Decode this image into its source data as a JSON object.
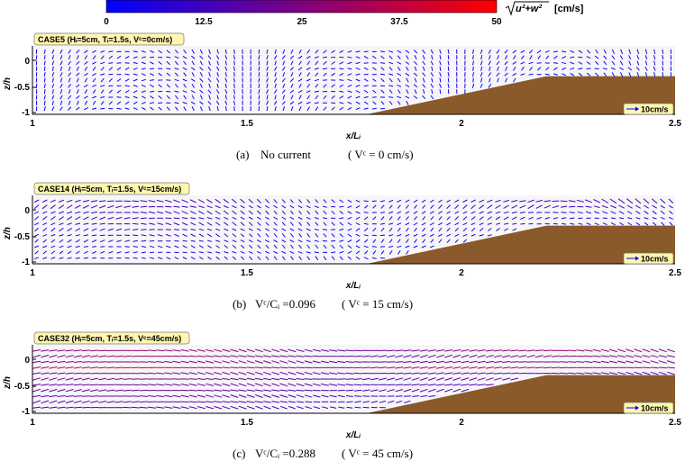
{
  "colorbar": {
    "ticks": [
      "0",
      "12.5",
      "25",
      "37.5",
      "50"
    ],
    "range": [
      0,
      50
    ],
    "label": "√u²+w² [cm/s]",
    "label_radicand": "u²+w²",
    "label_unit": "[cm/s]",
    "colors": [
      "#0000ff",
      "#ff0000"
    ]
  },
  "colors": {
    "bed": "#8b5a2b",
    "arrow_low": "#0000ff",
    "arrow_high": "#ff0000",
    "label_box": "#fff7b0"
  },
  "chart_data": [
    {
      "type": "quiver",
      "case_label": "CASE5 (Hᵢ=5cm, Tᵢ=1.5s, Vᶜ=0cm/s)",
      "case_parts": {
        "name": "CASE5",
        "H": "5cm",
        "T": "1.5s",
        "V": "0cm/s"
      },
      "xlabel": "x/Lᵢ",
      "ylabel": "z/h",
      "xlim": [
        1,
        2.5
      ],
      "ylim": [
        -1,
        0.2
      ],
      "xticks": [
        "1",
        "1.5",
        "2",
        "2.5"
      ],
      "yticks": [
        "0",
        "-0.5",
        "-1"
      ],
      "scale_label": "10cm/s",
      "current_cm_s": 0,
      "max_speed_cm_s": 18,
      "caption": {
        "letter": "(a)",
        "text": "No  current",
        "paren": "( Vᶜ = 0 cm/s)"
      }
    },
    {
      "type": "quiver",
      "case_label": "CASE14 (Hᵢ=5cm, Tᵢ=1.5s, Vᶜ=15cm/s)",
      "case_parts": {
        "name": "CASE14",
        "H": "5cm",
        "T": "1.5s",
        "V": "15cm/s"
      },
      "xlabel": "x/Lᵢ",
      "ylabel": "z/h",
      "xlim": [
        1,
        2.5
      ],
      "ylim": [
        -1,
        0.2
      ],
      "xticks": [
        "1",
        "1.5",
        "2",
        "2.5"
      ],
      "yticks": [
        "0",
        "-0.5",
        "-1"
      ],
      "scale_label": "10cm/s",
      "current_cm_s": 15,
      "max_speed_cm_s": 24,
      "caption": {
        "letter": "(b)",
        "text": "Vᶜ/Cᵢ =0.096",
        "paren": "( Vᶜ = 15 cm/s)"
      }
    },
    {
      "type": "quiver",
      "case_label": "CASE32 (Hᵢ=5cm, Tᵢ=1.5s, Vᶜ=45cm/s)",
      "case_parts": {
        "name": "CASE32",
        "H": "5cm",
        "T": "1.5s",
        "V": "45cm/s"
      },
      "xlabel": "x/Lᵢ",
      "ylabel": "z/h",
      "xlim": [
        1,
        2.5
      ],
      "ylim": [
        -1,
        0.2
      ],
      "xticks": [
        "1",
        "1.5",
        "2",
        "2.5"
      ],
      "yticks": [
        "0",
        "-0.5",
        "-1"
      ],
      "scale_label": "10cm/s",
      "current_cm_s": 45,
      "max_speed_cm_s": 42,
      "caption": {
        "letter": "(c)",
        "text": "Vᶜ/Cᵢ =0.288",
        "paren": "( Vᶜ = 45 cm/s)"
      }
    }
  ],
  "bathymetry": {
    "x": [
      1,
      1.78,
      2.2,
      2.5
    ],
    "z": [
      -1,
      -1,
      -0.33,
      -0.33
    ]
  }
}
